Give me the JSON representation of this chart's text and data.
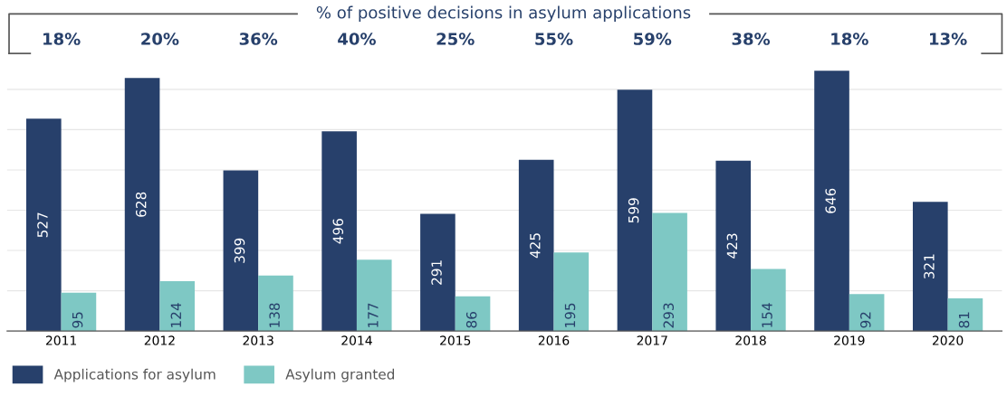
{
  "chart_data": {
    "type": "bar",
    "title": "% of positive decisions in asylum applications",
    "categories": [
      "2011",
      "2012",
      "2013",
      "2014",
      "2015",
      "2016",
      "2017",
      "2018",
      "2019",
      "2020"
    ],
    "series": [
      {
        "name": "Applications for asylum",
        "color": "#27406b",
        "values": [
          527,
          628,
          399,
          496,
          291,
          425,
          599,
          423,
          646,
          321
        ]
      },
      {
        "name": "Asylum granted",
        "color": "#7ec8c4",
        "values": [
          95,
          124,
          138,
          177,
          86,
          195,
          293,
          154,
          92,
          81
        ]
      }
    ],
    "annotations": [
      "18%",
      "20%",
      "36%",
      "40%",
      "25%",
      "55%",
      "59%",
      "38%",
      "18%",
      "13%"
    ],
    "tick_labels": "x",
    "grid": "y",
    "legend": "bottom left",
    "data_labels": true
  }
}
